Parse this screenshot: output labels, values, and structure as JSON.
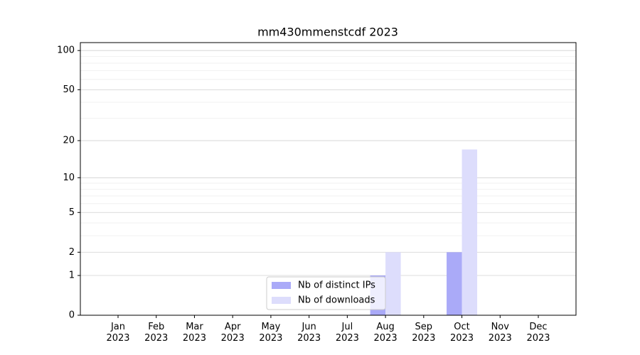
{
  "chart_data": {
    "type": "bar",
    "title": "mm430mmenstcdf 2023",
    "categories": [
      "Jan\n2023",
      "Feb\n2023",
      "Mar\n2023",
      "Apr\n2023",
      "May\n2023",
      "Jun\n2023",
      "Jul\n2023",
      "Aug\n2023",
      "Sep\n2023",
      "Oct\n2023",
      "Nov\n2023",
      "Dec\n2023"
    ],
    "series": [
      {
        "name": "Nb of distinct IPs",
        "color": "#aaaaf8",
        "values": [
          0,
          0,
          0,
          0,
          0,
          0,
          0,
          1,
          0,
          2,
          0,
          0
        ]
      },
      {
        "name": "Nb of downloads",
        "color": "#ddddfc",
        "values": [
          0,
          0,
          0,
          0,
          0,
          0,
          0,
          2,
          0,
          17,
          0,
          0
        ]
      }
    ],
    "yscale": "log1p",
    "ylim": [
      0,
      115
    ],
    "yticks": [
      0,
      1,
      2,
      5,
      10,
      20,
      50,
      100
    ],
    "yminorticks": [
      3,
      4,
      6,
      7,
      8,
      9,
      30,
      40,
      60,
      70,
      80,
      90
    ],
    "grid": true,
    "legend": "lower center"
  }
}
